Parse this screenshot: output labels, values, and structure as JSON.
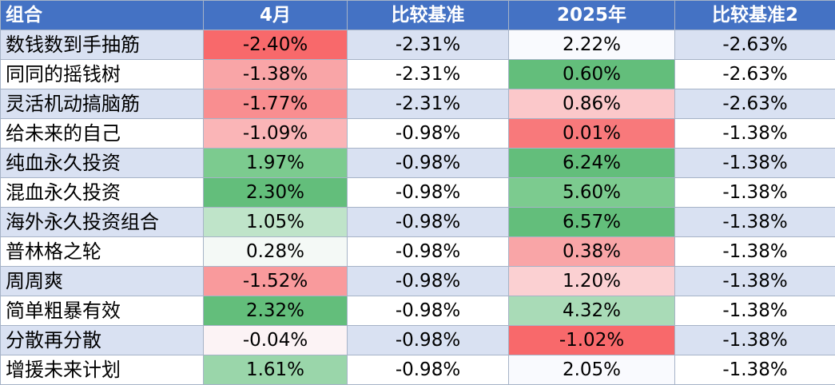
{
  "table": {
    "headers": [
      "组合",
      "4月",
      "比较基准",
      "2025年",
      "比较基准2"
    ],
    "rows": [
      {
        "name": "数钱数到手抽筋",
        "apr": "-2.40%",
        "bench": "-2.31%",
        "ytd": "2.22%",
        "bench2": "-2.63%",
        "apr_color": "#f8696b",
        "ytd_color": "#f9fafe"
      },
      {
        "name": "同同的摇钱树",
        "apr": "-1.38%",
        "bench": "-2.31%",
        "ytd": "0.60%",
        "bench2": "-2.63%",
        "apr_color": "#f9a5a7",
        "ytd_color": "#63be7b"
      },
      {
        "name": "灵活机动搞脑筋",
        "apr": "-1.77%",
        "bench": "-2.31%",
        "ytd": "0.86%",
        "bench2": "-2.63%",
        "apr_color": "#f98e90",
        "ytd_color": "#fbc8ca"
      },
      {
        "name": "给未来的自己",
        "apr": "-1.09%",
        "bench": "-0.98%",
        "ytd": "0.01%",
        "bench2": "-1.38%",
        "apr_color": "#fab5b7",
        "ytd_color": "#f8797b"
      },
      {
        "name": "纯血永久投资",
        "apr": "1.97%",
        "bench": "-0.98%",
        "ytd": "6.24%",
        "bench2": "-1.38%",
        "apr_color": "#7ccb8f",
        "ytd_color": "#63be7b"
      },
      {
        "name": "混血永久投资",
        "apr": "2.30%",
        "bench": "-0.98%",
        "ytd": "5.60%",
        "bench2": "-1.38%",
        "apr_color": "#63be7b",
        "ytd_color": "#7ccb8f"
      },
      {
        "name": "海外永久投资组合",
        "apr": "1.05%",
        "bench": "-0.98%",
        "ytd": "6.57%",
        "bench2": "-1.38%",
        "apr_color": "#bfe4c9",
        "ytd_color": "#63be7b"
      },
      {
        "name": "普林格之轮",
        "apr": "0.28%",
        "bench": "-0.98%",
        "ytd": "0.38%",
        "bench2": "-1.38%",
        "apr_color": "#f4f9f6",
        "ytd_color": "#f9a5a7"
      },
      {
        "name": "周周爽",
        "apr": "-1.52%",
        "bench": "-0.98%",
        "ytd": "1.20%",
        "bench2": "-1.38%",
        "apr_color": "#f99a9c",
        "ytd_color": "#fbd0d2"
      },
      {
        "name": "简单粗暴有效",
        "apr": "2.32%",
        "bench": "-0.98%",
        "ytd": "4.32%",
        "bench2": "-1.38%",
        "apr_color": "#63be7b",
        "ytd_color": "#a9dbb7"
      },
      {
        "name": "分散再分散",
        "apr": "-0.04%",
        "bench": "-0.98%",
        "ytd": "-1.02%",
        "bench2": "-1.38%",
        "apr_color": "#fcf3f5",
        "ytd_color": "#f8696b"
      },
      {
        "name": "增援未来计划",
        "apr": "1.61%",
        "bench": "-0.98%",
        "ytd": "2.05%",
        "bench2": "-1.38%",
        "apr_color": "#9ad6aa",
        "ytd_color": "#f9fafe"
      }
    ]
  }
}
